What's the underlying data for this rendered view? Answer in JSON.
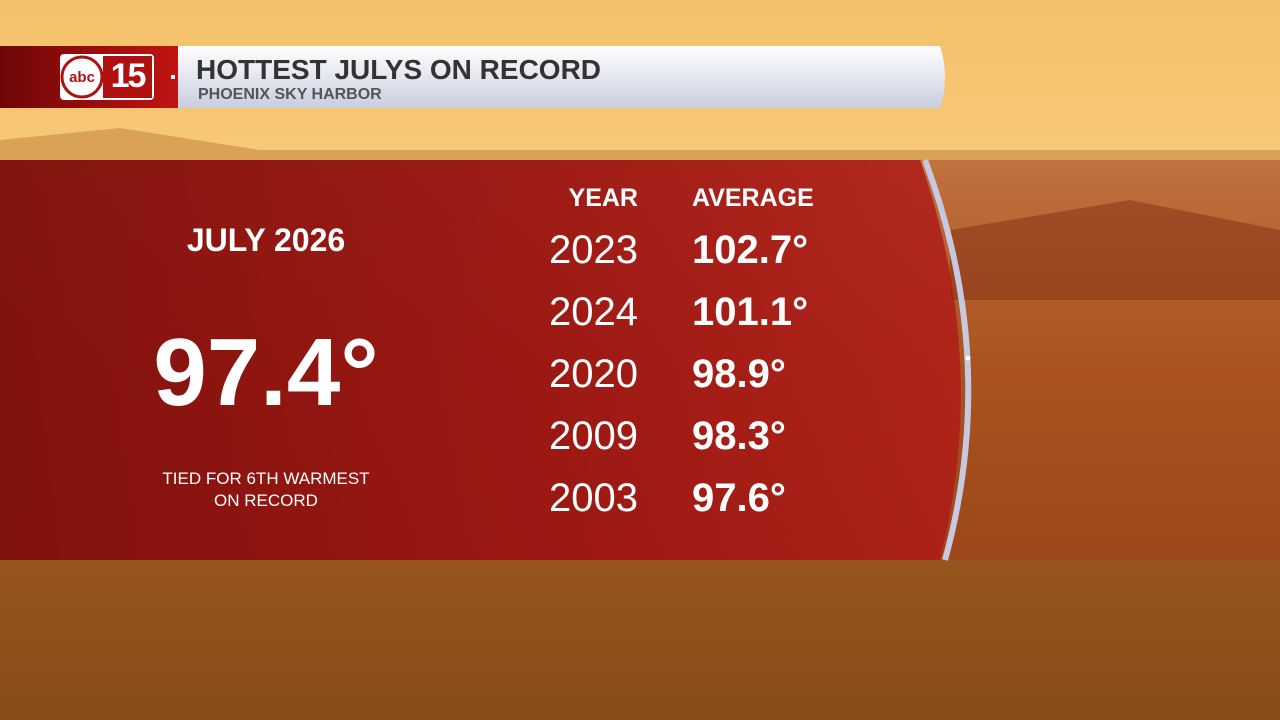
{
  "header": {
    "logo": {
      "text": "abc",
      "number": "15"
    },
    "title": "HOTTEST JULYS ON RECORD",
    "subtitle": "PHOENIX SKY HARBOR"
  },
  "feature": {
    "label": "JULY 2026",
    "value": "97.4°",
    "note": [
      "TIED FOR 6TH WARMEST",
      "ON RECORD"
    ]
  },
  "table": {
    "columns": [
      "YEAR",
      "AVERAGE"
    ],
    "rows": [
      [
        "2023",
        "102.7°"
      ],
      [
        "2024",
        "101.1°"
      ],
      [
        "2020",
        "98.9°"
      ],
      [
        "2009",
        "98.3°"
      ],
      [
        "2003",
        "97.6°"
      ]
    ]
  }
}
